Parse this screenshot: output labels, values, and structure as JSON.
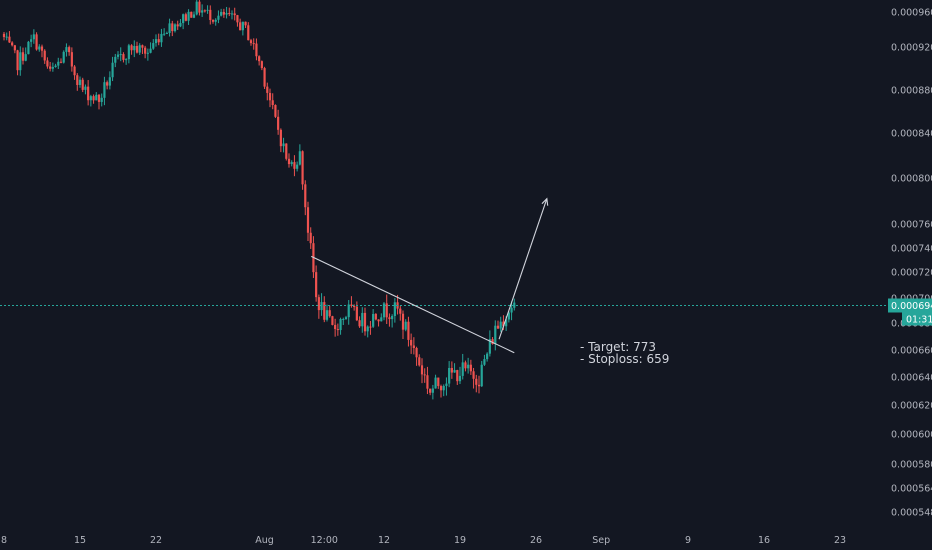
{
  "chart_data": {
    "type": "candlestick",
    "grid": false,
    "colors": {
      "background": "#131722",
      "up": "#26a69a",
      "down": "#ef5350",
      "trendline": "#d1d4dc",
      "price_line": "#26a69a",
      "axis_text": "#b2b5be"
    },
    "y_axis": {
      "ylim": [
        0.000535,
        0.000975
      ],
      "ticks": [
        "0.000960",
        "0.000920",
        "0.000880",
        "0.000840",
        "0.000800",
        "0.000760",
        "0.000740",
        "0.000720",
        "0.000700",
        "0.000680",
        "0.000660",
        "0.000640",
        "0.000620",
        "0.000600",
        "0.000580",
        "0.000564",
        "0.000548"
      ]
    },
    "x_axis": {
      "ticks": [
        {
          "label": "8",
          "day": 8
        },
        {
          "label": "15",
          "day": 15
        },
        {
          "label": "22",
          "day": 22
        },
        {
          "label": "Aug",
          "day": 32
        },
        {
          "label": "12:00",
          "day": 37.5
        },
        {
          "label": "12",
          "day": 43
        },
        {
          "label": "19",
          "day": 50
        },
        {
          "label": "26",
          "day": 57
        },
        {
          "label": "Sep",
          "day": 63
        },
        {
          "label": "9",
          "day": 71
        },
        {
          "label": "16",
          "day": 78
        },
        {
          "label": "23",
          "day": 85
        }
      ]
    },
    "last_price": {
      "label": "0.000694",
      "value": 0.000694,
      "countdown": "01:31"
    },
    "annotations": [
      "- Target: 773",
      "- Stoploss: 659"
    ],
    "trendline": {
      "start": {
        "day": 36.3,
        "value": 0.000733
      },
      "end": {
        "day": 55,
        "value": 0.000658
      }
    },
    "projection_arrow": {
      "start": {
        "day": 53.6,
        "value": 0.000668
      },
      "end": {
        "day": 58,
        "value": 0.000782
      }
    },
    "price_path": [
      {
        "day": 8.0,
        "value": 0.000935
      },
      {
        "day": 9.5,
        "value": 0.000905
      },
      {
        "day": 11.0,
        "value": 0.00093
      },
      {
        "day": 12.5,
        "value": 0.000895
      },
      {
        "day": 14.0,
        "value": 0.000915
      },
      {
        "day": 15.5,
        "value": 0.00088
      },
      {
        "day": 17.0,
        "value": 0.00087
      },
      {
        "day": 18.5,
        "value": 0.000905
      },
      {
        "day": 20.0,
        "value": 0.00092
      },
      {
        "day": 21.5,
        "value": 0.000915
      },
      {
        "day": 23.0,
        "value": 0.00094
      },
      {
        "day": 24.5,
        "value": 0.00095
      },
      {
        "day": 26.0,
        "value": 0.000965
      },
      {
        "day": 27.5,
        "value": 0.000955
      },
      {
        "day": 29.0,
        "value": 0.000955
      },
      {
        "day": 30.5,
        "value": 0.00094
      },
      {
        "day": 32.0,
        "value": 0.0009
      },
      {
        "day": 33.0,
        "value": 0.00086
      },
      {
        "day": 34.5,
        "value": 0.00081
      },
      {
        "day": 35.5,
        "value": 0.00082
      },
      {
        "day": 36.2,
        "value": 0.00076
      },
      {
        "day": 37.0,
        "value": 0.0007
      },
      {
        "day": 38.5,
        "value": 0.000675
      },
      {
        "day": 40.0,
        "value": 0.00069
      },
      {
        "day": 41.5,
        "value": 0.00068
      },
      {
        "day": 43.0,
        "value": 0.00069
      },
      {
        "day": 44.5,
        "value": 0.00069
      },
      {
        "day": 46.0,
        "value": 0.00066
      },
      {
        "day": 47.5,
        "value": 0.00063
      },
      {
        "day": 49.0,
        "value": 0.00064
      },
      {
        "day": 50.5,
        "value": 0.000645
      },
      {
        "day": 52.0,
        "value": 0.00064
      },
      {
        "day": 53.5,
        "value": 0.000675
      },
      {
        "day": 55.0,
        "value": 0.000694
      }
    ]
  }
}
